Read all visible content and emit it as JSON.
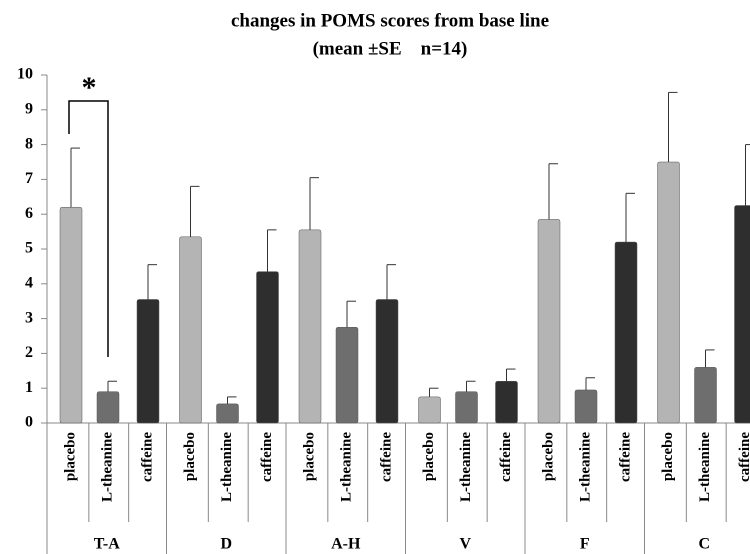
{
  "chart_data": {
    "type": "bar",
    "title": "changes in POMS scores from base line",
    "subtitle": "(mean ±SE　n=14)",
    "categories": [
      "T-A",
      "D",
      "A-H",
      "V",
      "F",
      "C"
    ],
    "series": [
      {
        "name": "placebo",
        "color": "#b4b4b4",
        "values": [
          6.2,
          5.35,
          5.55,
          0.75,
          5.85,
          7.5
        ],
        "errors": [
          1.7,
          1.45,
          1.5,
          0.25,
          1.6,
          2.0
        ]
      },
      {
        "name": "L-theanine",
        "color": "#6e6e6e",
        "values": [
          0.9,
          0.55,
          2.75,
          0.9,
          0.95,
          1.6
        ],
        "errors": [
          0.3,
          0.2,
          0.75,
          0.3,
          0.35,
          0.5
        ]
      },
      {
        "name": "caffeine",
        "color": "#2e2e2e",
        "values": [
          3.55,
          4.35,
          3.55,
          1.2,
          5.2,
          6.25
        ],
        "errors": [
          1.0,
          1.2,
          1.0,
          0.35,
          1.4,
          1.75
        ]
      }
    ],
    "ylim": [
      0,
      10
    ],
    "yticks": [
      0,
      1,
      2,
      3,
      4,
      5,
      6,
      7,
      8,
      9,
      10
    ],
    "annotations": [
      "*"
    ]
  }
}
